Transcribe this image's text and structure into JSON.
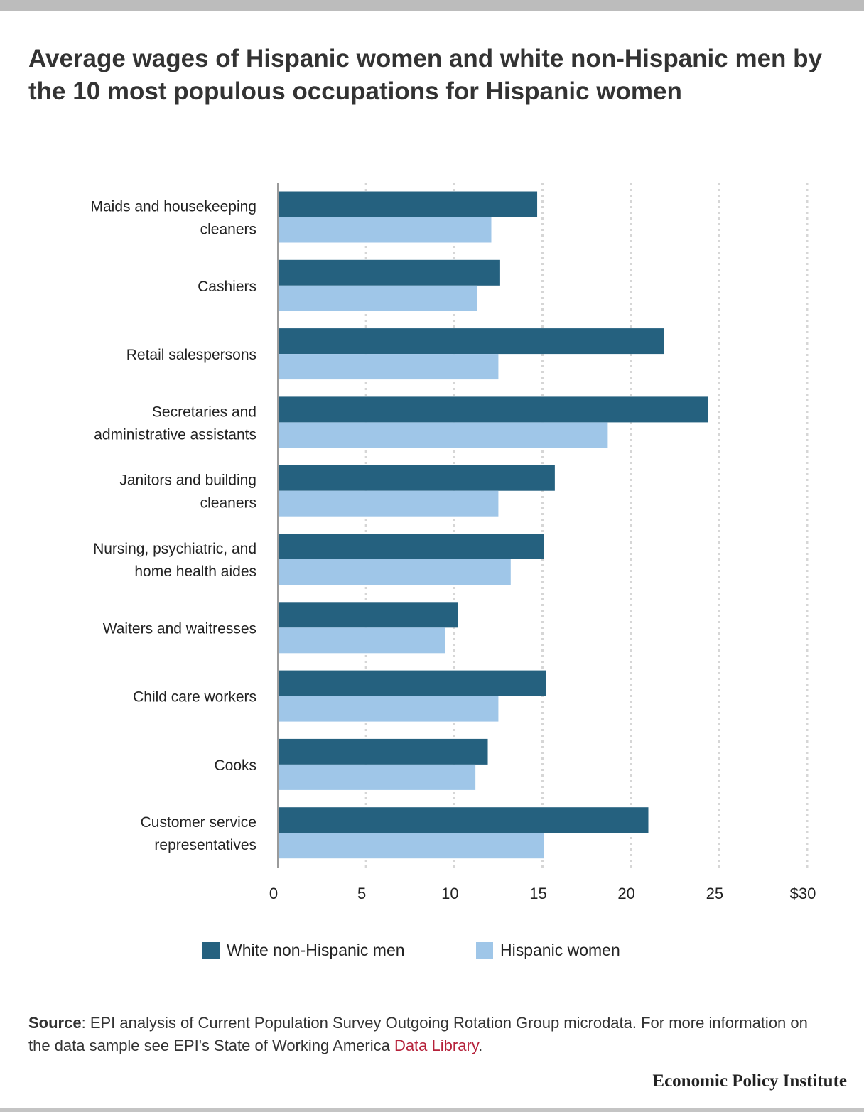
{
  "title": "Average wages of Hispanic women and white non-Hispanic men by the 10 most populous occupations for Hispanic women",
  "chart_data": {
    "type": "bar",
    "orientation": "horizontal",
    "categories": [
      [
        "Maids and housekeeping",
        "cleaners"
      ],
      [
        "Cashiers"
      ],
      [
        "Retail salespersons"
      ],
      [
        "Secretaries and",
        "administrative assistants"
      ],
      [
        "Janitors and building",
        "cleaners"
      ],
      [
        "Nursing, psychiatric, and",
        "home health aides"
      ],
      [
        "Waiters and waitresses"
      ],
      [
        "Child care workers"
      ],
      [
        "Cooks"
      ],
      [
        "Customer service",
        "representatives"
      ]
    ],
    "series": [
      {
        "name": "White non-Hispanic men",
        "color": "#25617f",
        "values": [
          14.7,
          12.6,
          21.9,
          24.4,
          15.7,
          15.1,
          10.2,
          15.2,
          11.9,
          21.0
        ]
      },
      {
        "name": "Hispanic women",
        "color": "#9fc6e8",
        "values": [
          12.1,
          11.3,
          12.5,
          18.7,
          12.5,
          13.2,
          9.5,
          12.5,
          11.2,
          15.1
        ]
      }
    ],
    "xlim": [
      0,
      30
    ],
    "xticks": [
      "0",
      "5",
      "10",
      "15",
      "20",
      "25",
      "$30"
    ],
    "grid": "dotted vertical",
    "legend_position": "bottom"
  },
  "legend": {
    "men_label": "White non-Hispanic men",
    "women_label": "Hispanic women"
  },
  "source": {
    "label": "Source",
    "text": ": EPI analysis of Current Population Survey Outgoing Rotation Group microdata. For more information on the data sample see EPI's State of Working America ",
    "link": "Data Library",
    "end": "."
  },
  "brand": "Economic Policy Institute"
}
